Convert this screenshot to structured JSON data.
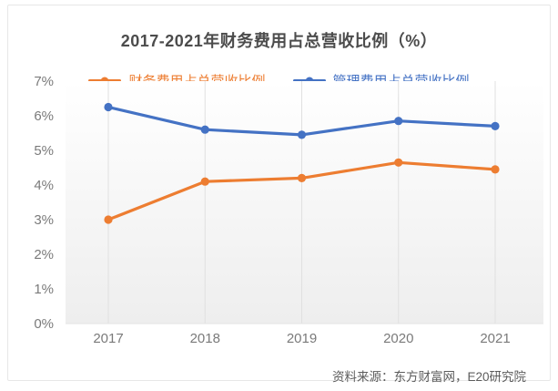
{
  "card": {
    "title": "2017-2021年财务费用占总营收比例（%）",
    "source": "资料来源：东方财富网，E20研究院"
  },
  "chart_data": {
    "type": "line",
    "title": "2017-2021年财务费用占总营收比例（%）",
    "categories": [
      "2017",
      "2018",
      "2019",
      "2020",
      "2021"
    ],
    "series": [
      {
        "name": "财务费用占总营收比例",
        "color": "#ED7D31",
        "values": [
          3.0,
          4.1,
          4.2,
          4.65,
          4.45
        ]
      },
      {
        "name": "管理费用占总营收比例",
        "color": "#4472C4",
        "values": [
          6.25,
          5.6,
          5.45,
          5.85,
          5.7
        ]
      }
    ],
    "xlabel": "",
    "ylabel": "",
    "ylim": [
      0,
      7
    ],
    "ytick_step": 1,
    "ytick_suffix": "%",
    "grid": "vertical-only",
    "legend_position": "top",
    "plot_background": [
      "#ffffff",
      "#eeeeee"
    ],
    "gridline_color": "#e0e0e0",
    "tick_label_color": "#7a7a7a",
    "source_note": "资料来源：东方财富网，E20研究院"
  }
}
